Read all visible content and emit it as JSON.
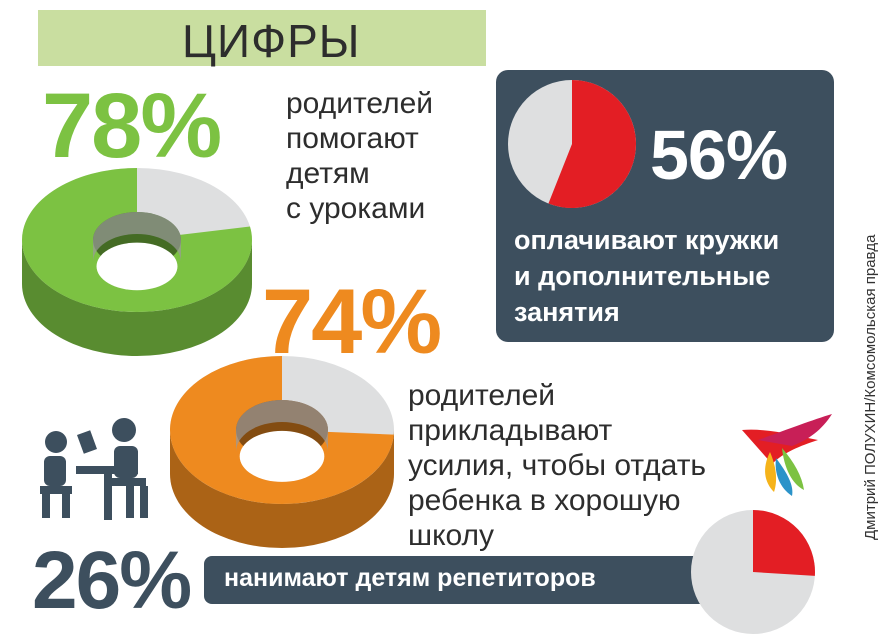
{
  "title": "ЦИФРЫ",
  "stats": {
    "s78": {
      "percent": "78%",
      "text": "родителей\nпомогают\nдетям\nс уроками"
    },
    "s56": {
      "percent": "56%",
      "text": "оплачивают кружки\nи дополнительные\nзанятия"
    },
    "s74": {
      "percent": "74%",
      "text": "родителей прикладывают\nусилия, чтобы отдать\nребенка в хорошую\nшколу"
    },
    "s26": {
      "percent": "26%",
      "text": "нанимают детям репетиторов"
    }
  },
  "credit": "Дмитрий ПОЛУХИН/Комсомольская правда",
  "colors": {
    "green": "#7cc242",
    "orange": "#ee8a1f",
    "red": "#e31e24",
    "dark": "#3d4f5e",
    "grey": "#dedfe0",
    "title_bg": "#c9dea0"
  },
  "chart_data": [
    {
      "type": "pie",
      "style": "3d-donut",
      "values": [
        78,
        22
      ],
      "labels": [
        "78%",
        ""
      ],
      "colors": [
        "#7cc242",
        "#dedfe0"
      ]
    },
    {
      "type": "pie",
      "values": [
        56,
        44
      ],
      "labels": [
        "56%",
        ""
      ],
      "colors": [
        "#e31e24",
        "#dedfe0"
      ]
    },
    {
      "type": "pie",
      "style": "3d-donut",
      "values": [
        74,
        26
      ],
      "labels": [
        "74%",
        ""
      ],
      "colors": [
        "#ee8a1f",
        "#dedfe0"
      ]
    },
    {
      "type": "pie",
      "values": [
        26,
        74
      ],
      "labels": [
        "26%",
        ""
      ],
      "colors": [
        "#e31e24",
        "#dedfe0"
      ]
    }
  ]
}
